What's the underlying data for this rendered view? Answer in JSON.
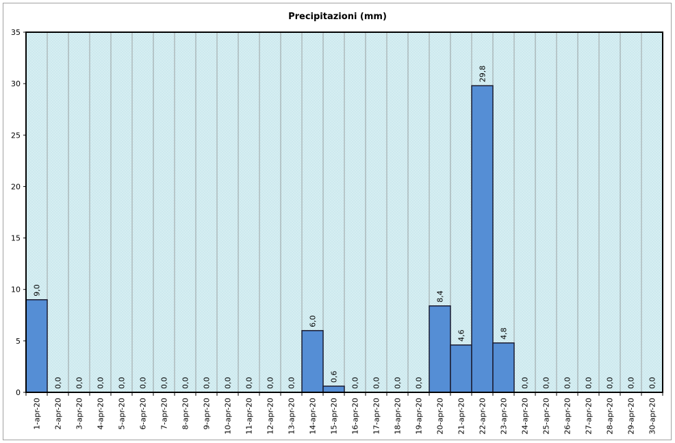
{
  "chart_data": {
    "type": "bar",
    "title": "Precipitazioni (mm)",
    "xlabel": "",
    "ylabel": "",
    "ylim": [
      0,
      35
    ],
    "yticks": [
      "0",
      "5",
      "10",
      "15",
      "20",
      "25",
      "30",
      "35"
    ],
    "grid": "vertical",
    "legend": "none",
    "categories": [
      "1-apr-20",
      "2-apr-20",
      "3-apr-20",
      "4-apr-20",
      "5-apr-20",
      "6-apr-20",
      "7-apr-20",
      "8-apr-20",
      "9-apr-20",
      "10-apr-20",
      "11-apr-20",
      "12-apr-20",
      "13-apr-20",
      "14-apr-20",
      "15-apr-20",
      "16-apr-20",
      "17-apr-20",
      "18-apr-20",
      "19-apr-20",
      "20-apr-20",
      "21-apr-20",
      "22-apr-20",
      "23-apr-20",
      "24-apr-20",
      "25-apr-20",
      "26-apr-20",
      "27-apr-20",
      "28-apr-20",
      "29-apr-20",
      "30-apr-20"
    ],
    "values": [
      9.0,
      0,
      0,
      0,
      0,
      0,
      0,
      0,
      0,
      0,
      0,
      0,
      0,
      6.0,
      0.6,
      0,
      0,
      0,
      0,
      8.4,
      4.6,
      29.8,
      4.8,
      0,
      0,
      0,
      0,
      0,
      0,
      0
    ],
    "value_labels": [
      "9,0",
      "0,0",
      "0,0",
      "0,0",
      "0,0",
      "0,0",
      "0,0",
      "0,0",
      "0,0",
      "0,0",
      "0,0",
      "0,0",
      "0,0",
      "6,0",
      "0,6",
      "0,0",
      "0,0",
      "0,0",
      "0,0",
      "8,4",
      "4,6",
      "29,8",
      "4,8",
      "0,0",
      "0,0",
      "0,0",
      "0,0",
      "0,0",
      "0,0",
      "0,0"
    ],
    "colors": {
      "bar_fill": "#558ed5",
      "bar_stroke": "#1a1a2e",
      "plot_background": "#d6eef2",
      "hatch": "#b9dde3",
      "gridline": "#8c8c8c"
    }
  }
}
